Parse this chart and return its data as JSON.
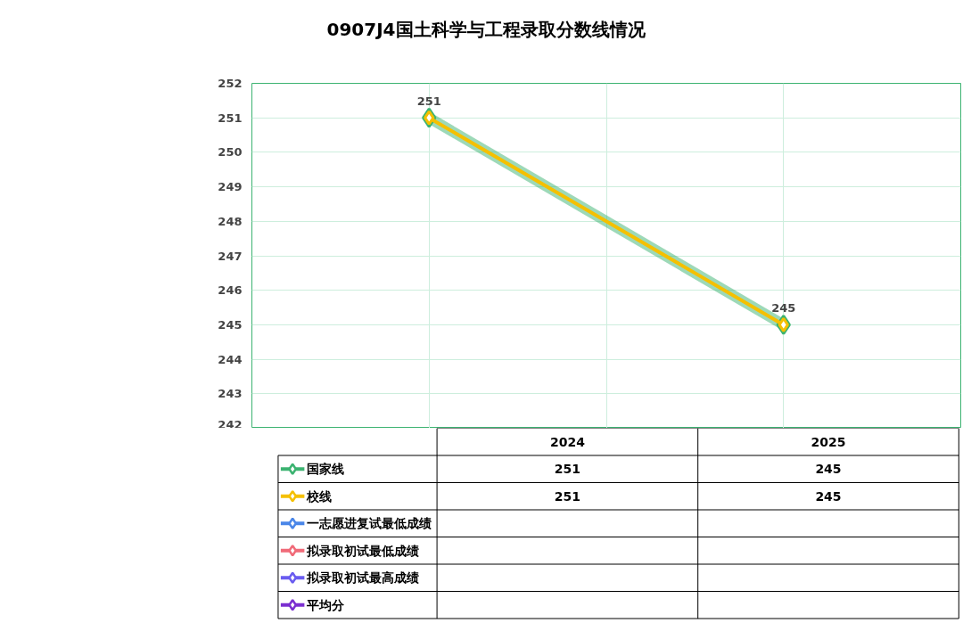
{
  "chart_data": {
    "type": "line",
    "title": "0907J4国土科学与工程录取分数线情况",
    "categories": [
      "2024",
      "2025"
    ],
    "series": [
      {
        "name": "国家线",
        "color": "#3cb371",
        "values": [
          251,
          245
        ]
      },
      {
        "name": "校线",
        "color": "#f5c000",
        "values": [
          251,
          245
        ]
      },
      {
        "name": "一志愿进复试最低成绩",
        "color": "#4a86e8",
        "values": [
          null,
          null
        ]
      },
      {
        "name": "拟录取初试最低成绩",
        "color": "#f06a78",
        "values": [
          null,
          null
        ]
      },
      {
        "name": "拟录取初试最高成绩",
        "color": "#6a5cf0",
        "values": [
          null,
          null
        ]
      },
      {
        "name": "平均分",
        "color": "#7b2fd0",
        "values": [
          null,
          null
        ]
      }
    ],
    "ylim": [
      242,
      252
    ],
    "yticks": [
      242,
      243,
      244,
      245,
      246,
      247,
      248,
      249,
      250,
      251,
      252
    ],
    "grid": true,
    "marker": "diamond",
    "line_style": "solid",
    "data_labels": true,
    "legend": "bottom",
    "annotations": [
      {
        "text": "251",
        "x": "2024",
        "y": 251
      },
      {
        "text": "245",
        "x": "2025",
        "y": 245
      }
    ]
  }
}
